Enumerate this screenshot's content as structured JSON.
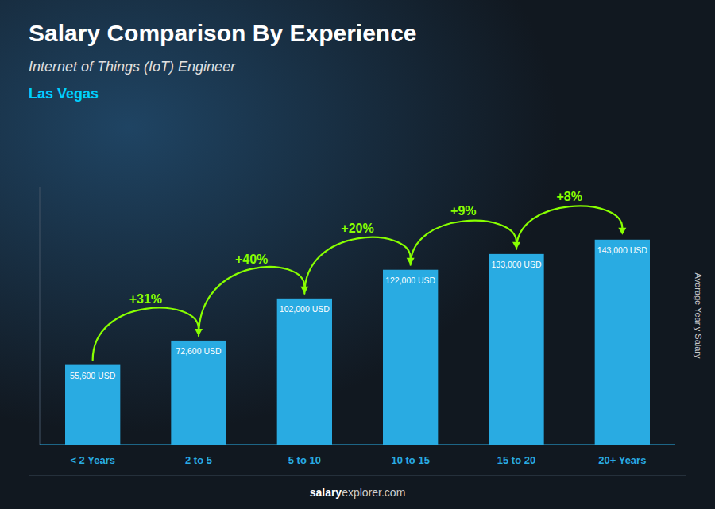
{
  "chart_data": {
    "type": "bar",
    "title": "Salary Comparison By Experience",
    "subtitle": "Internet of Things (IoT) Engineer",
    "city": "Las Vegas",
    "y_label": "Average Yearly Salary",
    "categories": [
      "< 2 Years",
      "2 to 5",
      "5 to 10",
      "10 to 15",
      "15 to 20",
      "20+ Years"
    ],
    "values": [
      55600,
      72600,
      102000,
      122000,
      133000,
      143000
    ],
    "value_labels": [
      "55,600 USD",
      "72,600 USD",
      "102,000 USD",
      "122,000 USD",
      "133,000 USD",
      "143,000 USD"
    ],
    "data_labels": true,
    "annotations": [
      "+31%",
      "+40%",
      "+20%",
      "+9%",
      "+8%"
    ],
    "source": [
      "salary",
      "explorer.com"
    ],
    "color": "#29ABE2",
    "ylim": [
      0,
      180000
    ],
    "tick_labels": "x",
    "grid": false
  }
}
